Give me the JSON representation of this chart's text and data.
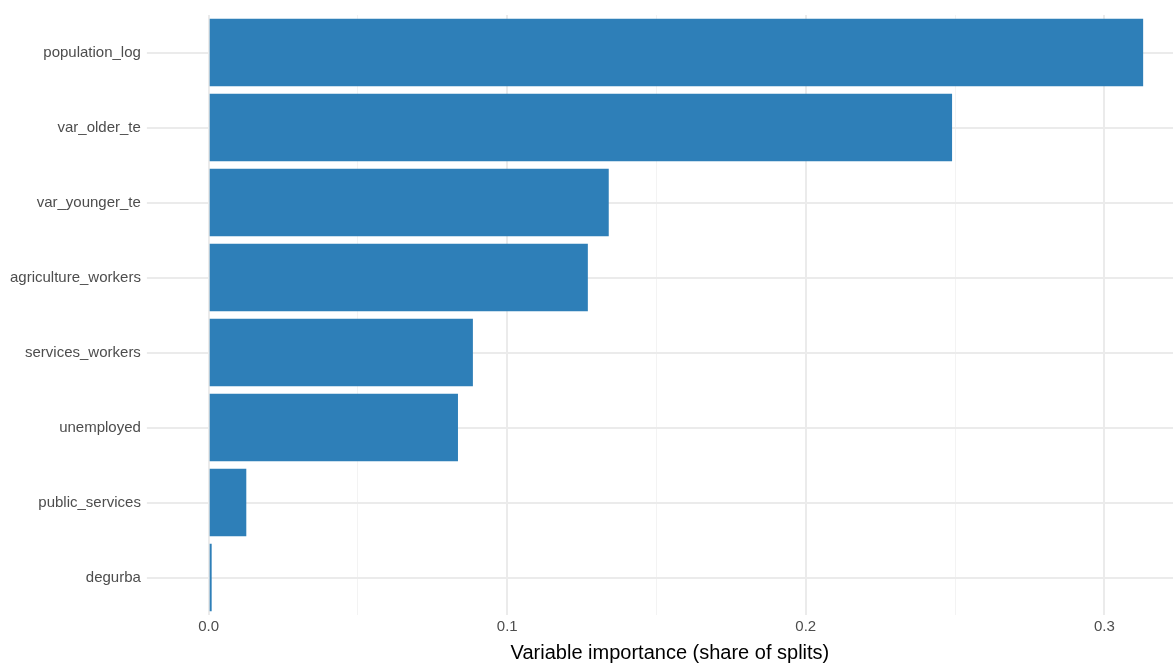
{
  "chart_data": {
    "type": "bar",
    "orientation": "horizontal",
    "xlabel": "Variable importance (share of splits)",
    "categories": [
      "population_log",
      "var_older_te",
      "var_younger_te",
      "agriculture_workers",
      "services_workers",
      "unemployed",
      "public_services",
      "degurba"
    ],
    "values": [
      0.313,
      0.249,
      0.134,
      0.127,
      0.0885,
      0.0835,
      0.0126,
      0.001
    ],
    "color": "#2e7fb8",
    "xlim": [
      -0.014,
      0.323
    ],
    "xticks": [
      {
        "value": 0,
        "label": "0.0"
      },
      {
        "value": 0.05,
        "label": null
      },
      {
        "value": 0.1,
        "label": "0.1"
      },
      {
        "value": 0.15,
        "label": null
      },
      {
        "value": 0.2,
        "label": "0.2"
      },
      {
        "value": 0.25,
        "label": null
      },
      {
        "value": 0.3,
        "label": "0.3"
      }
    ],
    "grid": true,
    "legend": false
  }
}
